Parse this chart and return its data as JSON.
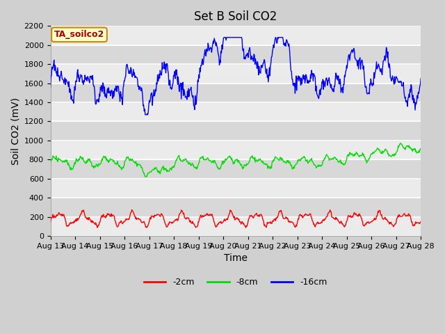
{
  "title": "Set B Soil CO2",
  "xlabel": "Time",
  "ylabel": "Soil CO2 (mV)",
  "ylim": [
    0,
    2200
  ],
  "yticks": [
    0,
    200,
    400,
    600,
    800,
    1000,
    1200,
    1400,
    1600,
    1800,
    2000,
    2200
  ],
  "xtick_labels": [
    "Aug 13",
    "Aug 14",
    "Aug 15",
    "Aug 16",
    "Aug 17",
    "Aug 18",
    "Aug 19",
    "Aug 20",
    "Aug 21",
    "Aug 22",
    "Aug 23",
    "Aug 24",
    "Aug 25",
    "Aug 26",
    "Aug 27",
    "Aug 28"
  ],
  "legend_label": "TA_soilco2",
  "legend_box_facecolor": "#ffffcc",
  "legend_box_edgecolor": "#cc8800",
  "legend_text_color": "#aa0000",
  "line_red_label": "-2cm",
  "line_green_label": "-8cm",
  "line_blue_label": "-16cm",
  "line_red_color": "#ff0000",
  "line_green_color": "#00dd00",
  "line_blue_color": "#0000ff",
  "fig_facecolor": "#d0d0d0",
  "ax_facecolor": "#e0e0e0",
  "band_light_color": "#ebebeb",
  "band_dark_color": "#d8d8d8",
  "title_fontsize": 12,
  "axis_label_fontsize": 10,
  "tick_fontsize": 8,
  "line_width": 1.0
}
